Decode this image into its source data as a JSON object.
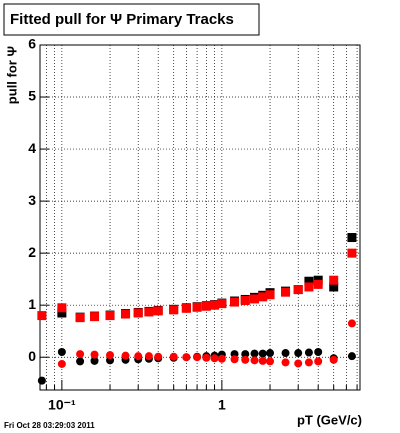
{
  "chart_data": {
    "type": "scatter",
    "title": "Fitted pull for Ψ  Primary Tracks",
    "y_label": "pull for Ψ",
    "x_label": "pT (GeV/c)",
    "footer": "Fri Oct 28 03:29:03 2011",
    "log_x": true,
    "grid": true,
    "xlim": [
      0.073,
      7.3
    ],
    "ylim": [
      -0.63,
      6
    ],
    "xticks": [
      {
        "value": 0.1,
        "label": "10⁻¹"
      },
      1
    ],
    "xminorticks": [
      0.08,
      0.09,
      0.2,
      0.3,
      0.4,
      0.5,
      0.6,
      0.7,
      0.8,
      0.9,
      2,
      3,
      4,
      5,
      6,
      7
    ],
    "yticks": [
      0,
      1,
      2,
      3,
      4,
      5,
      6
    ],
    "x": [
      0.075,
      0.1,
      0.13,
      0.16,
      0.2,
      0.25,
      0.3,
      0.35,
      0.4,
      0.5,
      0.6,
      0.7,
      0.8,
      0.9,
      1.0,
      1.2,
      1.4,
      1.6,
      1.8,
      2.0,
      2.5,
      3.0,
      3.5,
      4.0,
      5.0,
      6.5
    ],
    "series": [
      {
        "color": "#000000",
        "marker": "square",
        "values": [
          null,
          0.85,
          0.77,
          0.79,
          0.81,
          0.84,
          0.86,
          0.88,
          0.9,
          0.92,
          0.95,
          0.97,
          0.99,
          1.01,
          1.04,
          1.08,
          1.11,
          1.15,
          1.19,
          1.24,
          1.27,
          1.3,
          1.46,
          1.48,
          1.35,
          2.3
        ]
      },
      {
        "color": "#ff0000",
        "marker": "square",
        "values": [
          0.8,
          0.95,
          0.76,
          0.78,
          0.8,
          0.83,
          0.85,
          0.87,
          0.89,
          0.91,
          0.94,
          0.96,
          0.98,
          1.0,
          1.03,
          1.06,
          1.09,
          1.12,
          1.16,
          1.2,
          1.25,
          1.3,
          1.35,
          1.4,
          1.48,
          2.0
        ]
      },
      {
        "color": "#000000",
        "marker": "circle",
        "values": [
          -0.45,
          0.1,
          -0.08,
          -0.07,
          -0.06,
          -0.05,
          -0.04,
          -0.03,
          -0.02,
          -0.01,
          0.0,
          0.01,
          0.02,
          0.03,
          0.05,
          0.06,
          0.06,
          0.07,
          0.07,
          0.08,
          0.08,
          0.08,
          0.09,
          0.1,
          -0.02,
          0.02
        ]
      },
      {
        "color": "#ff0000",
        "marker": "circle",
        "values": [
          null,
          -0.13,
          0.06,
          0.05,
          0.04,
          0.03,
          0.02,
          0.02,
          0.01,
          0.01,
          0.0,
          0.0,
          -0.01,
          -0.02,
          -0.03,
          -0.04,
          -0.05,
          -0.06,
          -0.07,
          -0.08,
          -0.1,
          -0.12,
          -0.1,
          -0.08,
          -0.05,
          0.65
        ]
      }
    ]
  }
}
